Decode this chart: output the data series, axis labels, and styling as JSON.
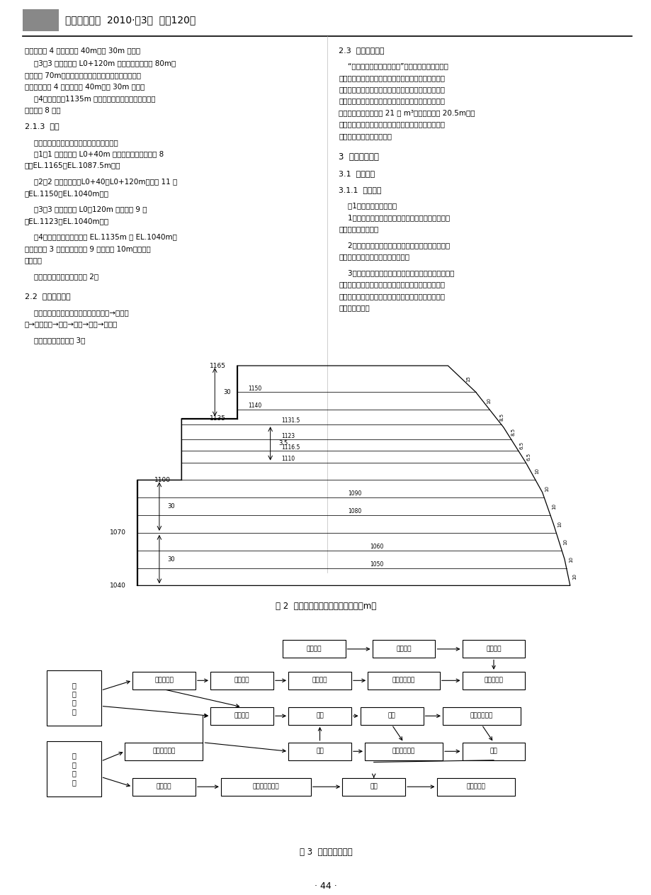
{
  "header_text": "水利水电施工  2010·第3期  总第120期",
  "fig2_caption": "图 2  左坝肩开掘分层布置图（单位：m）",
  "fig3_caption": "图 3  开掘施工流程图",
  "page_number": "· 44 ·",
  "left_col": [
    [
      "下游划分为 4 块，每块长 40m、宽 30m 左右。",
      7.5,
      false,
      0.015
    ],
    [
      "    （3）3 区：左坝肩 L0+120m 以下，工作面长约 80m、",
      7.5,
      false,
      0.013
    ],
    [
      "平均宽约 70m，工作面长度随高度下降而变短。自上游",
      7.5,
      false,
      0.013
    ],
    [
      "向下游划分为 4 块，每块长 40m、宽 30m 左右。",
      7.5,
      false,
      0.013
    ],
    [
      "    （4）预裂带：1135m 高程以下预裂爆破带，从下游往",
      7.5,
      false,
      0.013
    ],
    [
      "上游分成 8 段。",
      7.5,
      false,
      0.018
    ],
    [
      "2.1.3  分层",
      8.0,
      true,
      0.018
    ],
    [
      "    根据目前完成的形象面貌，各区分层如下：",
      7.5,
      false,
      0.013
    ],
    [
      "    （1）1 区：左坝肩 L0+40m 以上（含进水口）共分 8",
      7.5,
      false,
      0.013
    ],
    [
      "层（EL.1165～EL.1087.5m）。",
      7.5,
      false,
      0.018
    ],
    [
      "    （2）2 区：左坝肩（L0+40～L0+120m）共分 11 层",
      7.5,
      false,
      0.013
    ],
    [
      "（EL.1150～EL.1040m）。",
      7.5,
      false,
      0.018
    ],
    [
      "    （3）3 区：左坝肩 L0＋120m 以下共分 9 层",
      7.5,
      false,
      0.013
    ],
    [
      "（EL.1123～EL.1040m）。",
      7.5,
      false,
      0.018
    ],
    [
      "    （4）预裂带：预裂爆破从 EL.1135m 至 EL.1040m，",
      7.5,
      false,
      0.013
    ],
    [
      "每级马道分 3 层，三级马道共 9 层，每层 10m（除第一",
      7.5,
      false,
      0.013
    ],
    [
      "层外）。",
      7.5,
      false,
      0.018
    ],
    [
      "    左坝肩开掘分层布置图见图 2。",
      7.5,
      false,
      0.022
    ],
    [
      "2.2  制订开掘流程",
      8.0,
      true,
      0.018
    ],
    [
      "    石方开掘主要施工流程为：岩石面清理→测量放",
      7.5,
      false,
      0.013
    ],
    [
      "线→爆破造孔→装药→连线→爆破→出渣。",
      7.5,
      false,
      0.018
    ],
    [
      "    开掘施工流程图见图 3。",
      7.5,
      false,
      0.013
    ]
  ],
  "right_col": [
    [
      "2.3  加强现场调度",
      8.0,
      true,
      0.018
    ],
    [
      "    “调度出进度，调度出效益”在大岗山坝肩槽开掘中",
      7.5,
      false,
      0.013
    ],
    [
      "得到了很好的体现。在制订了分区、分层开掘方案和开",
      7.5,
      false,
      0.013
    ],
    [
      "掘施工流程后，通过调度加强现场组织、合理搭配设备",
      7.5,
      false,
      0.013
    ],
    [
      "资源，并严格按照方案和施工流程组织施工，最终大岗",
      7.5,
      false,
      0.013
    ],
    [
      "山拱肩槽月开掘最达到 21 万 m³，下降高度达 20.5m。现",
      7.5,
      false,
      0.013
    ],
    [
      "场调度在施工进度中起着至关重要的作用，只有加强现",
      7.5,
      false,
      0.013
    ],
    [
      "场调度才能保证施工进度。",
      7.5,
      false,
      0.022
    ],
    [
      "3  开掘质量控制",
      8.5,
      true,
      0.02
    ],
    [
      "3.1  爆破设计",
      8.0,
      true,
      0.018
    ],
    [
      "3.1.1  爆破试验",
      7.8,
      true,
      0.018
    ],
    [
      "    （1）试验的主要目的：",
      7.5,
      false,
      0.013
    ],
    [
      "    1）确定满足施工期规模生产要求的坝肩边坡开掘钒",
      7.5,
      false,
      0.013
    ],
    [
      "爆参数及施工工艺。",
      7.5,
      false,
      0.018
    ],
    [
      "    2）确定满足坝肩槽开掘质量控制要求的爆破装药结",
      7.5,
      false,
      0.013
    ],
    [
      "构、爆破孔网参数及炮孔布置方式。",
      7.5,
      false,
      0.018
    ],
    [
      "    3）通过检测得出开掘爆破振动在该地区的传播规律，",
      7.5,
      false,
      0.013
    ],
    [
      "作为坝肩槽开掘施工时振速预报的依据，同时提出相应",
      7.5,
      false,
      0.013
    ],
    [
      "的爆破振动控制措施，保证高边坡及周边建（构）筑物",
      7.5,
      false,
      0.013
    ],
    [
      "的安全、稳定。",
      7.5,
      false,
      0.013
    ]
  ],
  "flowchart_nodes": {
    "r1": [
      [
        48,
        50,
        10.5,
        4.5,
        "场地清理"
      ],
      [
        63,
        50,
        10.5,
        4.5,
        "测量放线"
      ],
      [
        78,
        50,
        10.5,
        4.5,
        "施工道路"
      ]
    ],
    "r2": [
      [
        23,
        42,
        10.5,
        4.5,
        "大面积造孔"
      ],
      [
        36,
        42,
        10.5,
        4.5,
        "测放点线"
      ],
      [
        49,
        42,
        10.5,
        4.5,
        "清理出渣"
      ],
      [
        63,
        42,
        12.0,
        4.5,
        "岩石顶面检平"
      ],
      [
        78,
        42,
        10.5,
        4.5,
        "覆盖层开掘"
      ]
    ],
    "r3": [
      [
        36,
        33,
        10.5,
        4.5,
        "装药堵塞"
      ],
      [
        49,
        33,
        10.5,
        4.5,
        "连线"
      ],
      [
        61,
        33,
        10.5,
        4.5,
        "起爆"
      ],
      [
        76,
        33,
        13.0,
        4.5,
        "安全检查记录"
      ]
    ],
    "r4": [
      [
        23,
        24,
        13.0,
        4.5,
        "炸材塞料准备"
      ],
      [
        49,
        24,
        10.5,
        4.5,
        "警报"
      ],
      [
        63,
        24,
        13.0,
        4.5,
        "人员机械撃离"
      ],
      [
        78,
        24,
        10.5,
        4.5,
        "出渣"
      ]
    ],
    "r5": [
      [
        23,
        15,
        10.5,
        4.5,
        "开掘结束"
      ],
      [
        40,
        15,
        15.0,
        4.5,
        "建基面清理验收"
      ],
      [
        58,
        15,
        10.5,
        4.5,
        "出渣"
      ],
      [
        75,
        15,
        13.0,
        4.5,
        "保护层开掘"
      ]
    ],
    "left_boxes": [
      [
        8,
        37.5,
        9.0,
        14.0,
        "爆\n破\n设\n计"
      ],
      [
        8,
        19.5,
        9.0,
        14.0,
        "现\n场\n试\n验"
      ]
    ]
  }
}
